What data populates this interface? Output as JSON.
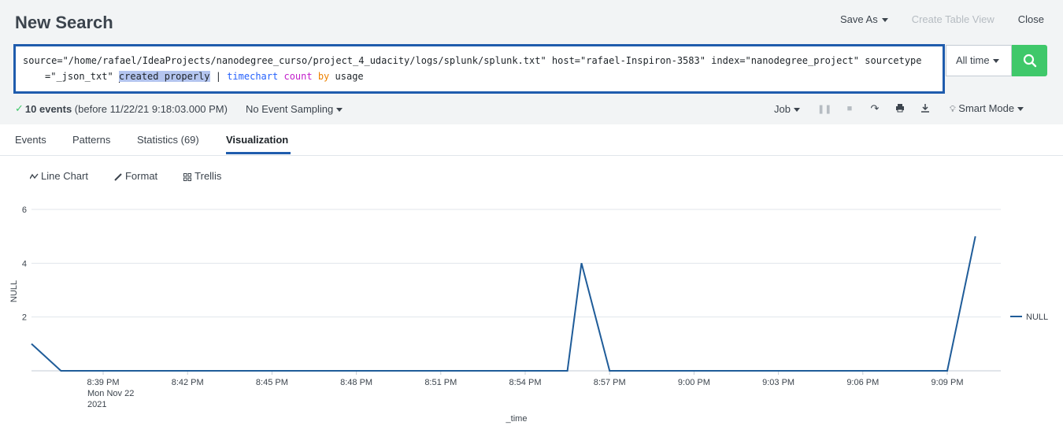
{
  "header": {
    "title": "New Search",
    "save_as": "Save As",
    "create_table_view": "Create Table View",
    "close": "Close"
  },
  "search": {
    "part1": "source=\"/home/rafael/IdeaProjects/nanodegree_curso/project_4_udacity/logs/splunk/splunk.txt\" host=\"rafael-Inspiron-3583\" index=\"nanodegree_project\" sourcetype",
    "part2": "=\"_json_txt\" ",
    "highlight": "created properly",
    "pipe": " | ",
    "command": "timechart",
    "function": "count",
    "keyword": "by",
    "field": "usage"
  },
  "time_picker": {
    "label": "All time"
  },
  "status": {
    "events": "10 events",
    "before": "(before 11/22/21 9:18:03.000 PM)",
    "sampling": "No Event Sampling"
  },
  "job": {
    "label": "Job",
    "mode": "Smart Mode"
  },
  "tabs": [
    {
      "label": "Events"
    },
    {
      "label": "Patterns"
    },
    {
      "label": "Statistics (69)"
    },
    {
      "label": "Visualization"
    }
  ],
  "viz_toolbar": {
    "line_chart": "Line Chart",
    "format": "Format",
    "trellis": "Trellis"
  },
  "colors": {
    "series": "#1f5c99",
    "search_button": "#3fc86a",
    "active_tab": "#1f5cad"
  },
  "chart_data": {
    "type": "line",
    "xlabel": "_time",
    "ylabel": "NULL",
    "x_ticks": [
      "8:39 PM",
      "8:42 PM",
      "8:45 PM",
      "8:48 PM",
      "8:51 PM",
      "8:54 PM",
      "8:57 PM",
      "9:00 PM",
      "9:03 PM",
      "9:06 PM",
      "9:09 PM"
    ],
    "x_tick_extra": [
      "Mon Nov 22",
      "2021"
    ],
    "y_ticks": [
      2,
      4,
      6
    ],
    "ylim": [
      0,
      6
    ],
    "legend": "right",
    "grid": true,
    "series": [
      {
        "name": "NULL",
        "x_minutes_from_839": [
          -2,
          -1.5,
          7,
          15,
          16,
          16.5,
          17,
          18,
          26,
          29.5,
          30,
          31
        ],
        "values": [
          1,
          0,
          0,
          0,
          0,
          0,
          4,
          0,
          0,
          0,
          0,
          5
        ]
      }
    ]
  }
}
